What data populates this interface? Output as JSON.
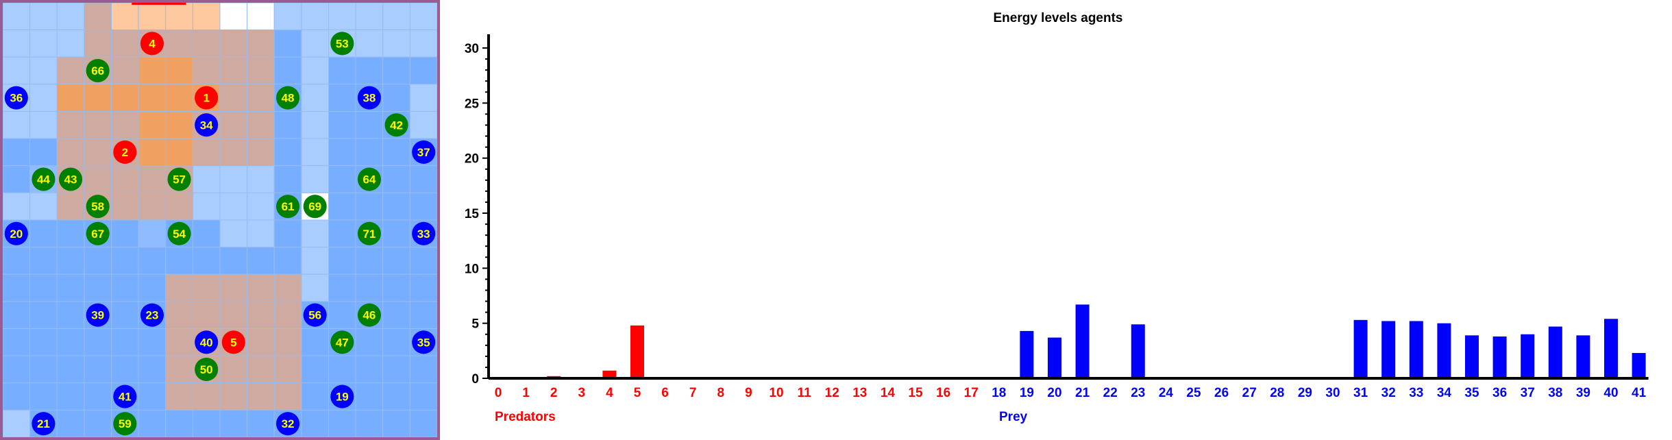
{
  "colors": {
    "predator": "#ff0000",
    "prey": "#0000ff",
    "food": "#008000",
    "agent_text": "#ffff00"
  },
  "grid": {
    "cols": 16,
    "rows": 16,
    "legend": {
      "W": "white",
      "L": "light-blue",
      "M": "mid-blue",
      "D": "blue",
      "B": "tan",
      "O": "orange",
      "P": "peach"
    },
    "cells": [
      "LLLBPPPPWWLLLLLL",
      "LLLBBBBBBBDLLLLL",
      "LLBBBOOBBBDLDDDD",
      "LLOOOOOOBBDLDDDL",
      "LLBBBOOBBBDLDDDL",
      "DDBBBOOBBBDLDDDD",
      "DMBBBBBLLLDLDDDD",
      "LLBBBBBLLLDWDDDD",
      "DDDDDMDDLLDLDDDD",
      "DDDDDDDDDDDLDDDD",
      "DDDDDDBBBBBLDDDD",
      "DDDDDDBBBBBDDDDD",
      "DDDDDDBBBBBDDDDD",
      "DDDDDDBBBBBDDDDD",
      "DDDDDDBBBBBDDDDD",
      "LDDDDDDDDDDDDDDD"
    ],
    "agents": [
      {
        "id": "4",
        "kind": "predator",
        "col": 5,
        "row": 1
      },
      {
        "id": "1",
        "kind": "predator",
        "col": 7,
        "row": 3
      },
      {
        "id": "2",
        "kind": "predator",
        "col": 4,
        "row": 5
      },
      {
        "id": "5",
        "kind": "predator",
        "col": 8,
        "row": 12
      },
      {
        "id": "36",
        "kind": "prey",
        "col": 0,
        "row": 3
      },
      {
        "id": "34",
        "kind": "prey",
        "col": 7,
        "row": 4
      },
      {
        "id": "38",
        "kind": "prey",
        "col": 13,
        "row": 3
      },
      {
        "id": "37",
        "kind": "prey",
        "col": 15,
        "row": 5
      },
      {
        "id": "20",
        "kind": "prey",
        "col": 0,
        "row": 8
      },
      {
        "id": "33",
        "kind": "prey",
        "col": 15,
        "row": 8
      },
      {
        "id": "39",
        "kind": "prey",
        "col": 3,
        "row": 11
      },
      {
        "id": "23",
        "kind": "prey",
        "col": 5,
        "row": 11
      },
      {
        "id": "56",
        "kind": "prey",
        "col": 11,
        "row": 11
      },
      {
        "id": "40",
        "kind": "prey",
        "col": 7,
        "row": 12
      },
      {
        "id": "35",
        "kind": "prey",
        "col": 15,
        "row": 12
      },
      {
        "id": "41",
        "kind": "prey",
        "col": 4,
        "row": 14
      },
      {
        "id": "19",
        "kind": "prey",
        "col": 12,
        "row": 14
      },
      {
        "id": "21",
        "kind": "prey",
        "col": 1,
        "row": 15
      },
      {
        "id": "32",
        "kind": "prey",
        "col": 10,
        "row": 15
      },
      {
        "id": "53",
        "kind": "food",
        "col": 12,
        "row": 1
      },
      {
        "id": "66",
        "kind": "food",
        "col": 3,
        "row": 2
      },
      {
        "id": "48",
        "kind": "food",
        "col": 10,
        "row": 3
      },
      {
        "id": "42",
        "kind": "food",
        "col": 14,
        "row": 4
      },
      {
        "id": "44",
        "kind": "food",
        "col": 1,
        "row": 6
      },
      {
        "id": "43",
        "kind": "food",
        "col": 2,
        "row": 6
      },
      {
        "id": "57",
        "kind": "food",
        "col": 6,
        "row": 6
      },
      {
        "id": "64",
        "kind": "food",
        "col": 13,
        "row": 6
      },
      {
        "id": "58",
        "kind": "food",
        "col": 3,
        "row": 7
      },
      {
        "id": "61",
        "kind": "food",
        "col": 10,
        "row": 7
      },
      {
        "id": "69",
        "kind": "food",
        "col": 11,
        "row": 7
      },
      {
        "id": "67",
        "kind": "food",
        "col": 3,
        "row": 8
      },
      {
        "id": "54",
        "kind": "food",
        "col": 6,
        "row": 8
      },
      {
        "id": "71",
        "kind": "food",
        "col": 13,
        "row": 8
      },
      {
        "id": "46",
        "kind": "food",
        "col": 13,
        "row": 11
      },
      {
        "id": "47",
        "kind": "food",
        "col": 12,
        "row": 12
      },
      {
        "id": "50",
        "kind": "food",
        "col": 7,
        "row": 13
      },
      {
        "id": "59",
        "kind": "food",
        "col": 4,
        "row": 15
      }
    ]
  },
  "chart_data": {
    "type": "bar",
    "title": "Energy levels agents",
    "ylim": [
      0,
      31
    ],
    "y_ticks": [
      0,
      5,
      10,
      15,
      20,
      25,
      30
    ],
    "group_labels": [
      {
        "text": "Predators",
        "color": "#ff0000"
      },
      {
        "text": "Prey",
        "color": "#0000ff"
      }
    ],
    "series": [
      {
        "color": "#ff0000",
        "categories": [
          "0",
          "1",
          "2",
          "3",
          "4",
          "5",
          "6",
          "7",
          "8",
          "9",
          "10",
          "11",
          "12",
          "13",
          "14",
          "15",
          "16",
          "17"
        ],
        "values": [
          0,
          0.1,
          0.2,
          0,
          0.7,
          4.8,
          0,
          0,
          0,
          0,
          0,
          0,
          0,
          0,
          0,
          0,
          0,
          0
        ]
      },
      {
        "color": "#0000ff",
        "categories": [
          "18",
          "19",
          "20",
          "21",
          "22",
          "23",
          "24",
          "25",
          "26",
          "27",
          "28",
          "29",
          "30",
          "31",
          "32",
          "33",
          "34",
          "35",
          "36",
          "37",
          "38",
          "39",
          "40",
          "41"
        ],
        "values": [
          0,
          4.3,
          3.7,
          6.7,
          0,
          4.9,
          0,
          0,
          0,
          0,
          0,
          0,
          0,
          5.3,
          5.2,
          5.2,
          5.0,
          3.9,
          3.8,
          4.0,
          4.7,
          3.9,
          5.4,
          2.3
        ]
      }
    ]
  }
}
